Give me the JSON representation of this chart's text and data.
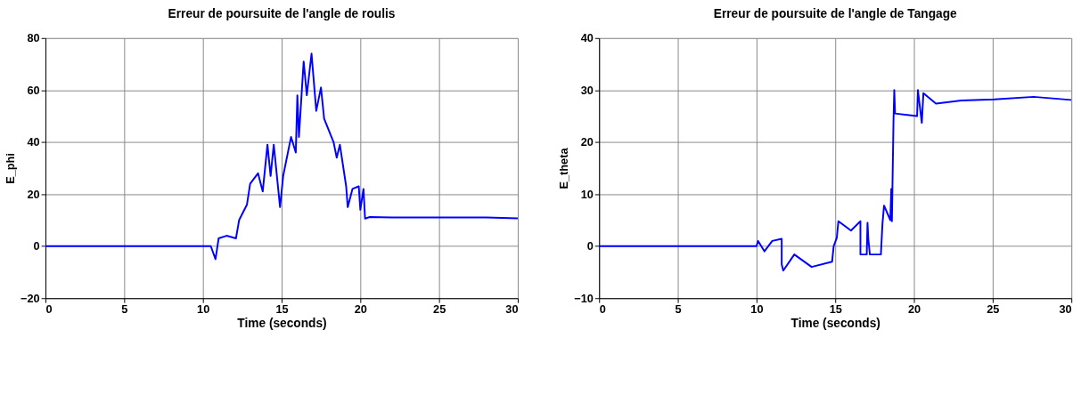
{
  "chart_data": [
    {
      "type": "line",
      "title": "Erreur de poursuite de l'angle de roulis",
      "xlabel": "Time (seconds)",
      "ylabel": "E_phi",
      "xlim": [
        0,
        30
      ],
      "xticks": [
        0,
        5,
        10,
        15,
        20,
        25,
        30
      ],
      "ylim": [
        -20,
        80
      ],
      "yticks": [
        -20,
        0,
        20,
        40,
        60,
        80
      ],
      "grid": true,
      "series": [
        {
          "color": "#0000ff",
          "x": [
            0,
            5,
            10,
            10.5,
            10.8,
            11,
            11.5,
            12.1,
            12.3,
            12.8,
            13.0,
            13.5,
            13.8,
            14.1,
            14.3,
            14.5,
            14.9,
            15.1,
            15.6,
            15.9,
            16.0,
            16.1,
            16.4,
            16.6,
            16.9,
            17.2,
            17.5,
            17.7,
            18.3,
            18.5,
            18.7,
            19.1,
            19.2,
            19.5,
            19.9,
            20.0,
            20.2,
            20.3,
            20.6,
            22,
            25,
            28,
            30
          ],
          "values": [
            0,
            0,
            0,
            0,
            -5,
            3,
            4,
            3,
            10,
            16,
            24,
            28,
            21,
            39,
            27,
            39,
            15,
            27,
            42,
            36,
            58,
            42,
            71,
            58,
            74,
            52,
            61,
            49,
            40,
            34,
            39,
            23,
            15,
            22,
            23,
            14,
            22,
            10.6,
            11.2,
            11,
            11,
            11,
            10.7
          ]
        }
      ]
    },
    {
      "type": "line",
      "title": "Erreur de poursuite de l'angle de Tangage",
      "xlabel": "Time (seconds)",
      "ylabel": "E_theta",
      "xlim": [
        0,
        30
      ],
      "xticks": [
        0,
        5,
        10,
        15,
        20,
        25,
        30
      ],
      "ylim": [
        -10,
        40
      ],
      "yticks": [
        -10,
        0,
        10,
        20,
        30,
        40
      ],
      "grid": true,
      "series": [
        {
          "color": "#0000ff",
          "x": [
            0,
            5,
            10,
            10.1,
            10.5,
            11,
            11.6,
            11.6,
            11.7,
            12.4,
            13.5,
            14.8,
            14.9,
            15.1,
            15.2,
            16.0,
            16.6,
            16.6,
            17.0,
            17.05,
            17.1,
            17.2,
            17.9,
            18.0,
            18.1,
            18.5,
            18.56,
            18.6,
            18.7,
            18.75,
            18.8,
            20.2,
            20.25,
            20.5,
            20.6,
            21.4,
            23,
            25.1,
            27.6,
            30
          ],
          "values": [
            0,
            0,
            0,
            1,
            -1,
            1,
            1.4,
            -3.5,
            -4.7,
            -1.6,
            -4,
            -3,
            0,
            1.6,
            4.8,
            3,
            4.8,
            -1.6,
            -1.6,
            4.5,
            1.4,
            -1.6,
            -1.6,
            4.3,
            7.8,
            5,
            11,
            4.8,
            24,
            30,
            25.5,
            25,
            30,
            23.7,
            29.4,
            27.4,
            28,
            28.2,
            28.7,
            28.1
          ]
        }
      ]
    }
  ]
}
